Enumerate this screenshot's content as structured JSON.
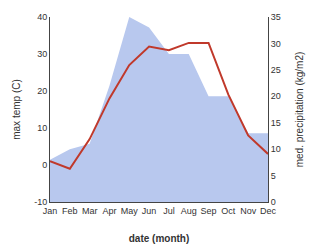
{
  "chart_data": {
    "type": "line",
    "categories": [
      "Jan",
      "Feb",
      "Mar",
      "Apr",
      "May",
      "Jun",
      "Jul",
      "Aug",
      "Sep",
      "Oct",
      "Nov",
      "Dec"
    ],
    "series": [
      {
        "type": "area",
        "axis": "y2",
        "color": "#b8c8ee",
        "values": [
          8,
          10,
          11,
          22,
          35,
          33,
          28,
          28,
          20,
          20,
          13,
          13
        ]
      },
      {
        "type": "line",
        "color": "#c0392b",
        "values": [
          1,
          -1,
          7,
          18,
          27,
          32,
          31,
          33,
          33,
          19,
          8,
          3
        ]
      }
    ],
    "xlabel": "date (month)",
    "ylabel": "max temp (C)",
    "y2label": "med. precipitation (kg/m2)",
    "ylim": [
      -10,
      40
    ],
    "yticks": [
      -10,
      0,
      10,
      20,
      30,
      40
    ],
    "y2lim": [
      0,
      35
    ],
    "y2ticks": [
      0,
      5,
      10,
      15,
      20,
      25,
      30,
      35
    ],
    "grid": false
  }
}
